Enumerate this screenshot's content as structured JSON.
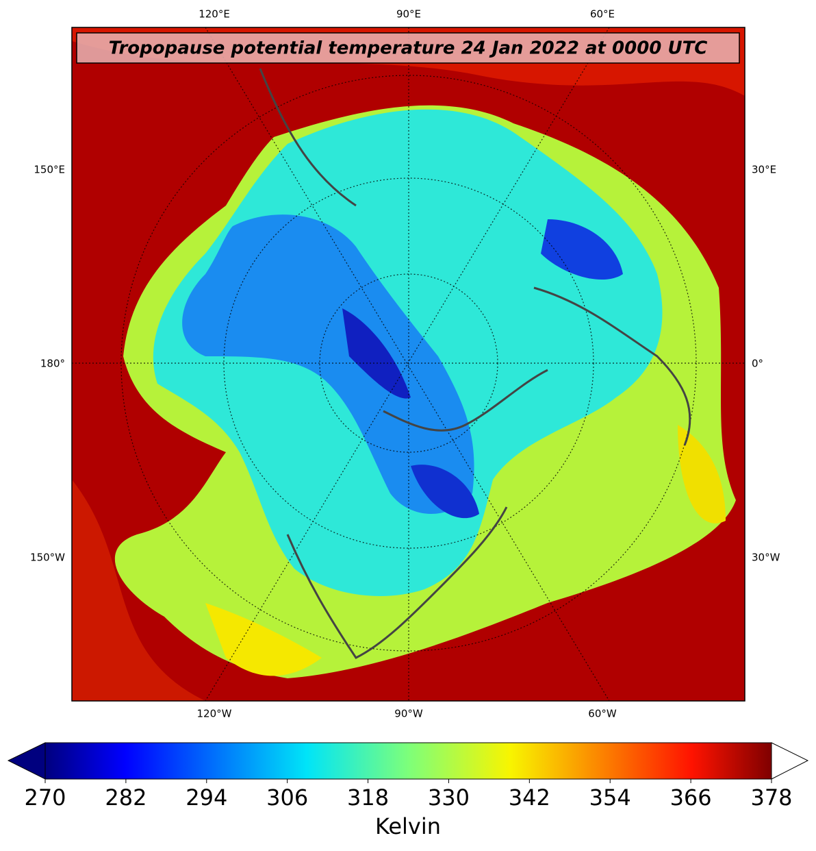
{
  "map": {
    "title": "Tropopause potential temperature 24 Jan 2022 at 0000 UTC",
    "labels": {
      "top": [
        "120°E",
        "90°E",
        "60°E"
      ],
      "left": [
        "150°E",
        "180°",
        "150°W"
      ],
      "right": [
        "30°E",
        "0°",
        "30°W"
      ],
      "bottom": [
        "120°W",
        "90°W",
        "60°W"
      ]
    }
  },
  "colorbar": {
    "label": "Kelvin",
    "lim": [
      270,
      378
    ],
    "ticks": [
      270,
      282,
      294,
      306,
      318,
      330,
      342,
      354,
      366,
      378
    ]
  }
}
